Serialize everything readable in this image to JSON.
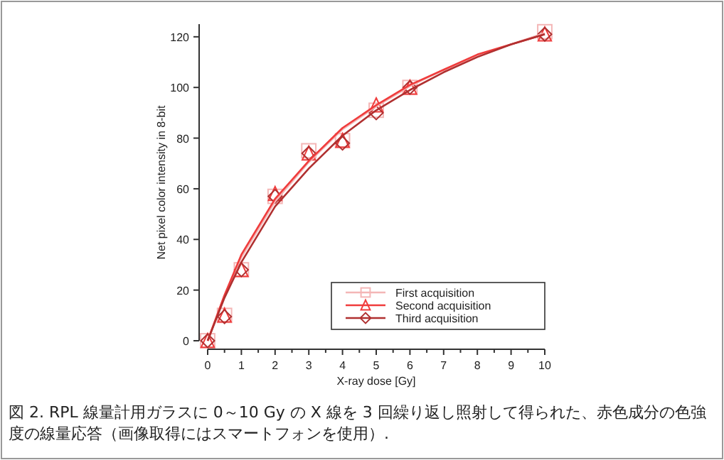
{
  "chart_data": {
    "type": "scatter",
    "xlabel": "X-ray dose [Gy]",
    "ylabel": "Net pixel color intensity in 8-bit",
    "annotations": [
      "図 2. RPL 線量計用ガラスに 0～10 Gy の X 線を 3 回繰り返し照射して得られた、赤色成分の色強度の線量応答（画像取得にはスマートフォンを使用）."
    ],
    "xlim": [
      0,
      10
    ],
    "ylim": [
      0,
      125
    ],
    "xticks": [
      0,
      1,
      2,
      3,
      4,
      5,
      6,
      7,
      8,
      9,
      10
    ],
    "yticks": [
      0,
      20,
      40,
      60,
      80,
      100,
      120
    ],
    "legend": "bottom right",
    "series": [
      {
        "name": "First acquisition",
        "color": "#f4b6b6",
        "marker": "square",
        "x": [
          0,
          0.5,
          1,
          2,
          3,
          4,
          5,
          6,
          10
        ],
        "values": [
          0,
          10,
          28,
          57,
          75,
          79,
          91,
          100,
          122
        ]
      },
      {
        "name": "Second acquisition",
        "color": "#f03c3c",
        "marker": "triangle",
        "x": [
          0,
          0.5,
          1,
          2,
          3,
          4,
          5,
          6,
          10
        ],
        "values": [
          0,
          10,
          28,
          58,
          74,
          79,
          93,
          100,
          121
        ]
      },
      {
        "name": "Third acquisition",
        "color": "#b03030",
        "marker": "diamond",
        "x": [
          0,
          0.5,
          1,
          2,
          3,
          4,
          5,
          6,
          10
        ],
        "values": [
          0,
          9.5,
          28,
          57,
          74,
          78,
          90,
          100,
          121
        ]
      },
      {
        "type": "line",
        "color": "#f4b6b6",
        "x": [
          0,
          0.5,
          1,
          2,
          3,
          4,
          5,
          6,
          7,
          8,
          9,
          10
        ],
        "values": [
          0,
          18,
          33,
          55,
          70.5,
          83.5,
          92.5,
          100.5,
          107,
          112.5,
          117,
          121.5
        ]
      },
      {
        "type": "line",
        "color": "#f03c3c",
        "x": [
          0,
          0.5,
          1,
          2,
          3,
          4,
          5,
          6,
          7,
          8,
          9,
          10
        ],
        "values": [
          0,
          18,
          34,
          56,
          71,
          84,
          93,
          101,
          107,
          113,
          117,
          121
        ]
      },
      {
        "type": "line",
        "color": "#b03030",
        "x": [
          0,
          0.5,
          1,
          2,
          3,
          4,
          5,
          6,
          7,
          8,
          9,
          10
        ],
        "values": [
          0,
          17,
          31,
          53,
          68,
          81,
          91,
          99,
          106,
          112,
          117,
          121
        ]
      }
    ]
  }
}
